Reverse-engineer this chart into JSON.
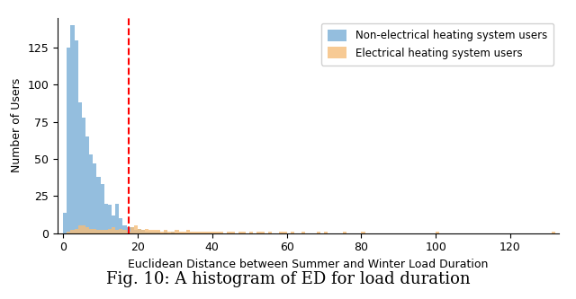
{
  "title": "Fig. 10: A histogram of ED for load duration",
  "xlabel": "Euclidean Distance between Summer and Winter Load Duration",
  "ylabel": "Number of Users",
  "blue_color": "#7aaed6",
  "orange_color": "#f5bd7a",
  "blue_label": "Non-electrical heating system users",
  "orange_label": "Electrical heating system users",
  "vline_x": 17.5,
  "vline_color": "red",
  "xlim": [
    -1.5,
    133
  ],
  "ylim": [
    0,
    145
  ],
  "yticks": [
    0,
    25,
    50,
    75,
    100,
    125
  ],
  "xticks": [
    0,
    20,
    40,
    60,
    80,
    100,
    120
  ],
  "blue_bars": [
    14,
    125,
    140,
    130,
    88,
    78,
    65,
    53,
    47,
    38,
    33,
    20,
    19,
    12,
    20,
    10,
    5,
    4,
    4,
    2,
    3,
    2,
    1,
    1,
    1,
    1,
    0,
    1,
    0,
    1,
    0,
    0,
    0,
    0,
    0,
    0,
    0,
    0,
    0,
    0,
    0,
    0,
    0,
    0,
    0,
    0,
    0,
    0,
    0,
    0,
    0,
    0,
    0,
    0,
    0,
    0,
    0,
    0,
    0,
    0,
    0,
    0,
    0,
    0,
    0,
    0,
    0,
    0,
    0,
    0,
    0,
    0,
    0,
    0,
    0,
    0,
    0,
    0,
    0,
    0,
    0,
    0,
    0,
    0,
    0,
    0,
    0,
    0,
    0,
    0,
    0,
    0,
    0,
    0,
    0,
    0,
    0,
    0,
    0,
    0,
    0,
    0,
    0,
    0,
    0,
    0,
    0,
    0,
    0,
    0,
    0,
    0,
    0,
    0,
    0,
    0,
    0,
    0,
    0,
    0,
    0,
    0,
    0,
    0,
    0,
    0,
    0,
    0,
    0,
    0,
    0,
    0,
    0
  ],
  "orange_bars": [
    0,
    1,
    2,
    3,
    5,
    5,
    4,
    3,
    3,
    2,
    2,
    2,
    3,
    4,
    2,
    3,
    2,
    1,
    4,
    5,
    3,
    2,
    3,
    2,
    2,
    2,
    1,
    2,
    1,
    1,
    2,
    1,
    1,
    2,
    1,
    1,
    1,
    1,
    1,
    1,
    1,
    1,
    1,
    0,
    1,
    1,
    0,
    1,
    1,
    0,
    1,
    0,
    1,
    1,
    0,
    1,
    0,
    0,
    1,
    1,
    0,
    1,
    0,
    0,
    1,
    0,
    0,
    0,
    1,
    0,
    1,
    0,
    0,
    0,
    0,
    1,
    0,
    0,
    0,
    0,
    1,
    0,
    0,
    0,
    0,
    0,
    0,
    0,
    0,
    0,
    0,
    0,
    0,
    0,
    0,
    0,
    0,
    0,
    0,
    0,
    1,
    0,
    0,
    0,
    0,
    0,
    0,
    0,
    0,
    0,
    0,
    0,
    0,
    0,
    0,
    0,
    0,
    0,
    0,
    0,
    0,
    0,
    0,
    0,
    0,
    0,
    0,
    0,
    0,
    0,
    0,
    1,
    0
  ]
}
